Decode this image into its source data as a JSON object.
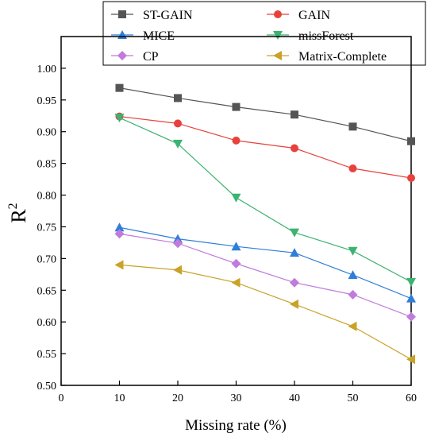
{
  "chart_data": {
    "type": "line",
    "xlabel": "Missing rate (%)",
    "ylabel": "R",
    "ylabel_superscript": "2",
    "xlim": [
      0,
      60
    ],
    "ylim": [
      0.5,
      1.05
    ],
    "xticks": [
      0,
      10,
      20,
      30,
      40,
      50,
      60
    ],
    "yticks": [
      0.5,
      0.55,
      0.6,
      0.65,
      0.7,
      0.75,
      0.8,
      0.85,
      0.9,
      0.95,
      1.0
    ],
    "x": [
      10,
      20,
      30,
      40,
      50,
      60
    ],
    "grid": false,
    "legend_position": "top",
    "series": [
      {
        "name": "ST-GAIN",
        "marker": "square",
        "color": "#555555",
        "values": [
          0.969,
          0.953,
          0.939,
          0.927,
          0.908,
          0.885
        ]
      },
      {
        "name": "GAIN",
        "marker": "circle",
        "color": "#e8413c",
        "values": [
          0.924,
          0.913,
          0.886,
          0.874,
          0.842,
          0.827
        ]
      },
      {
        "name": "MICE",
        "marker": "triangle-up",
        "color": "#2f7ed8",
        "values": [
          0.749,
          0.731,
          0.719,
          0.709,
          0.674,
          0.637
        ]
      },
      {
        "name": "missForest",
        "marker": "triangle-down",
        "color": "#3cb371",
        "values": [
          0.922,
          0.881,
          0.796,
          0.741,
          0.712,
          0.663
        ]
      },
      {
        "name": "CP",
        "marker": "diamond",
        "color": "#c07bdc",
        "values": [
          0.739,
          0.724,
          0.692,
          0.662,
          0.643,
          0.608
        ]
      },
      {
        "name": "Matrix-Complete",
        "marker": "triangle-left",
        "color": "#c9a227",
        "values": [
          0.69,
          0.682,
          0.662,
          0.628,
          0.593,
          0.541
        ]
      }
    ]
  }
}
